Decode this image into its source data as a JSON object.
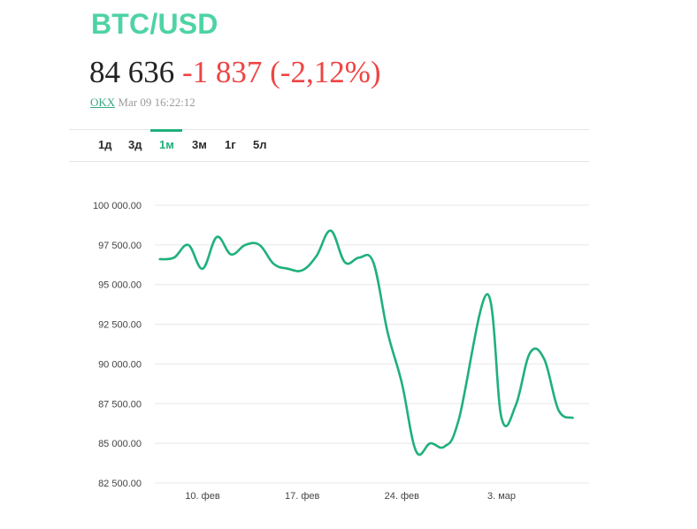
{
  "header": {
    "pair": "BTC/USD",
    "price": "84 636",
    "change": "-1 837",
    "change_pct": "(-2,12%)",
    "exchange": "OKX",
    "timestamp": "Mar 09 16:22:12"
  },
  "colors": {
    "accent": "#1fb07b",
    "pair_title": "#4ed3a4",
    "negative": "#ef4444",
    "line": "#1fb07b",
    "grid": "#e8e8e8"
  },
  "tabs": [
    {
      "label": "1д",
      "active": false
    },
    {
      "label": "3д",
      "active": false
    },
    {
      "label": "1м",
      "active": true
    },
    {
      "label": "3м",
      "active": false
    },
    {
      "label": "1г",
      "active": false
    },
    {
      "label": "5л",
      "active": false
    }
  ],
  "chart_data": {
    "type": "line",
    "title": "",
    "xlabel": "",
    "ylabel": "",
    "ylim": [
      82500,
      100000
    ],
    "grid": true,
    "y_ticks": [
      100000,
      97500,
      95000,
      92500,
      90000,
      87500,
      85000,
      82500
    ],
    "y_tick_labels": [
      "100 000.00",
      "97 500.00",
      "95 000.00",
      "92 500.00",
      "90 000.00",
      "87 500.00",
      "85 000.00",
      "82 500.00"
    ],
    "x_ticks": [
      {
        "date": "2025-02-10",
        "label": "10. фев"
      },
      {
        "date": "2025-02-17",
        "label": "17. фев"
      },
      {
        "date": "2025-02-24",
        "label": "24. фев"
      },
      {
        "date": "2025-03-03",
        "label": "3. мар"
      }
    ],
    "series": [
      {
        "points": [
          {
            "x": "2025-02-07",
            "y": 96600
          },
          {
            "x": "2025-02-08",
            "y": 96700
          },
          {
            "x": "2025-02-09",
            "y": 97500
          },
          {
            "x": "2025-02-10",
            "y": 96000
          },
          {
            "x": "2025-02-11",
            "y": 98000
          },
          {
            "x": "2025-02-12",
            "y": 96900
          },
          {
            "x": "2025-02-13",
            "y": 97500
          },
          {
            "x": "2025-02-14",
            "y": 97500
          },
          {
            "x": "2025-02-15",
            "y": 96300
          },
          {
            "x": "2025-02-16",
            "y": 96000
          },
          {
            "x": "2025-02-17",
            "y": 95900
          },
          {
            "x": "2025-02-18",
            "y": 96800
          },
          {
            "x": "2025-02-19",
            "y": 98400
          },
          {
            "x": "2025-02-20",
            "y": 96400
          },
          {
            "x": "2025-02-21",
            "y": 96700
          },
          {
            "x": "2025-02-22",
            "y": 96400
          },
          {
            "x": "2025-02-23",
            "y": 92000
          },
          {
            "x": "2025-02-24",
            "y": 88800
          },
          {
            "x": "2025-02-25",
            "y": 84500
          },
          {
            "x": "2025-02-26",
            "y": 85000
          },
          {
            "x": "2025-02-27",
            "y": 84800
          },
          {
            "x": "2025-02-28",
            "y": 86500
          },
          {
            "x": "2025-03-02",
            "y": 94400
          },
          {
            "x": "2025-03-03",
            "y": 86600
          },
          {
            "x": "2025-03-04",
            "y": 87400
          },
          {
            "x": "2025-03-05",
            "y": 90700
          },
          {
            "x": "2025-03-06",
            "y": 90300
          },
          {
            "x": "2025-03-07",
            "y": 87100
          },
          {
            "x": "2025-03-08",
            "y": 86600
          }
        ]
      }
    ]
  }
}
